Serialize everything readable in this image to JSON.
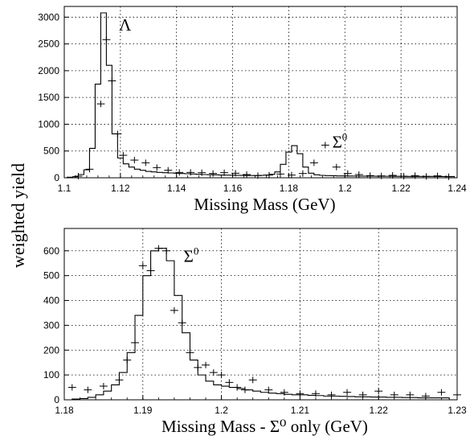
{
  "figure": {
    "shared_ylabel": "weighted yield"
  },
  "chart_data": [
    {
      "type": "histogram",
      "xlabel": "Missing Mass (GeV)",
      "xlim": [
        1.1,
        1.24
      ],
      "ylim": [
        0,
        3200
      ],
      "xticks": [
        "1.1",
        "1.12",
        "1.14",
        "1.16",
        "1.18",
        "1.2",
        "1.22",
        "1.24"
      ],
      "yticks": [
        "0",
        "500",
        "1000",
        "1500",
        "2000",
        "2500",
        "3000"
      ],
      "grid": true,
      "annotations": [
        {
          "text": "Λ",
          "x": 1.1195,
          "y": 2750
        },
        {
          "text": "Σ",
          "sup": "0",
          "x": 1.1955,
          "y": 560
        }
      ],
      "series": [
        {
          "style": "step",
          "bin_width": 0.002,
          "x": [
            1.102,
            1.104,
            1.106,
            1.108,
            1.11,
            1.112,
            1.114,
            1.116,
            1.118,
            1.12,
            1.122,
            1.124,
            1.126,
            1.128,
            1.13,
            1.132,
            1.134,
            1.136,
            1.138,
            1.14,
            1.142,
            1.144,
            1.146,
            1.148,
            1.15,
            1.152,
            1.154,
            1.156,
            1.158,
            1.16,
            1.162,
            1.164,
            1.166,
            1.168,
            1.17,
            1.172,
            1.174,
            1.176,
            1.178,
            1.18,
            1.182,
            1.184,
            1.186,
            1.188,
            1.19,
            1.192,
            1.194,
            1.196,
            1.198,
            1.2,
            1.202,
            1.204,
            1.206,
            1.208,
            1.21,
            1.212,
            1.214,
            1.216,
            1.218,
            1.22,
            1.222,
            1.224,
            1.226,
            1.228,
            1.23,
            1.232,
            1.234,
            1.236,
            1.238
          ],
          "y": [
            10,
            20,
            60,
            150,
            550,
            1750,
            3080,
            2100,
            820,
            370,
            260,
            200,
            160,
            140,
            120,
            110,
            100,
            95,
            90,
            85,
            80,
            75,
            70,
            65,
            60,
            58,
            55,
            52,
            50,
            48,
            46,
            44,
            42,
            42,
            45,
            50,
            65,
            110,
            250,
            480,
            600,
            450,
            200,
            85,
            55,
            45,
            40,
            38,
            35,
            34,
            33,
            32,
            31,
            30,
            30,
            29,
            28,
            28,
            27,
            27,
            26,
            26,
            25,
            25,
            25,
            25,
            24,
            24,
            24
          ]
        },
        {
          "style": "points",
          "x": [
            1.105,
            1.109,
            1.113,
            1.115,
            1.117,
            1.119,
            1.121,
            1.125,
            1.129,
            1.133,
            1.137,
            1.141,
            1.145,
            1.149,
            1.153,
            1.157,
            1.161,
            1.165,
            1.169,
            1.173,
            1.177,
            1.181,
            1.185,
            1.189,
            1.193,
            1.197,
            1.201,
            1.205,
            1.209,
            1.213,
            1.217,
            1.221,
            1.225,
            1.229,
            1.233,
            1.237
          ],
          "y": [
            30,
            160,
            1380,
            2580,
            1810,
            820,
            420,
            330,
            280,
            190,
            140,
            100,
            100,
            95,
            80,
            95,
            85,
            60,
            40,
            50,
            70,
            50,
            80,
            280,
            610,
            200,
            80,
            60,
            40,
            35,
            45,
            30,
            40,
            25,
            35,
            20
          ]
        }
      ]
    },
    {
      "type": "histogram",
      "xlabel": "Missing Mass - Σ⁰ only (GeV)",
      "xlim": [
        1.18,
        1.23
      ],
      "ylim": [
        0,
        690
      ],
      "xticks": [
        "1.18",
        "1.19",
        "1.2",
        "1.21",
        "1.22",
        "1.23"
      ],
      "yticks": [
        "0",
        "100",
        "200",
        "300",
        "400",
        "500",
        "600"
      ],
      "grid": true,
      "annotations": [
        {
          "text": "Σ",
          "sup": "0",
          "x": 1.1952,
          "y": 555
        }
      ],
      "series": [
        {
          "style": "step",
          "bin_width": 0.001,
          "x": [
            1.1805,
            1.1815,
            1.1825,
            1.1835,
            1.1845,
            1.1855,
            1.1865,
            1.1875,
            1.1885,
            1.1895,
            1.1905,
            1.1915,
            1.1925,
            1.1935,
            1.1945,
            1.1955,
            1.1965,
            1.1975,
            1.1985,
            1.1995,
            1.2005,
            1.2015,
            1.2025,
            1.2035,
            1.2045,
            1.2055,
            1.2065,
            1.2075,
            1.2085,
            1.2095,
            1.2105,
            1.2115,
            1.2125,
            1.2135,
            1.2145,
            1.2155,
            1.2165,
            1.2175,
            1.2185,
            1.2195,
            1.2205,
            1.2215,
            1.2225,
            1.2235,
            1.2245,
            1.2255,
            1.2265,
            1.2275,
            1.2285
          ],
          "y": [
            0,
            3,
            5,
            10,
            20,
            35,
            60,
            110,
            190,
            340,
            500,
            600,
            610,
            560,
            420,
            270,
            160,
            100,
            75,
            60,
            55,
            50,
            45,
            40,
            35,
            30,
            27,
            25,
            22,
            20,
            20,
            18,
            17,
            15,
            15,
            14,
            13,
            12,
            12,
            11,
            11,
            10,
            10,
            9,
            9,
            8,
            8,
            8,
            8
          ]
        },
        {
          "style": "points",
          "x": [
            1.181,
            1.183,
            1.185,
            1.187,
            1.188,
            1.189,
            1.19,
            1.191,
            1.192,
            1.193,
            1.194,
            1.195,
            1.196,
            1.197,
            1.198,
            1.199,
            1.2,
            1.201,
            1.202,
            1.203,
            1.204,
            1.206,
            1.208,
            1.21,
            1.212,
            1.214,
            1.216,
            1.218,
            1.22,
            1.222,
            1.224,
            1.226,
            1.228,
            1.23
          ],
          "y": [
            50,
            40,
            55,
            80,
            160,
            230,
            540,
            520,
            610,
            600,
            360,
            310,
            190,
            130,
            140,
            110,
            100,
            70,
            50,
            40,
            80,
            40,
            30,
            25,
            25,
            20,
            30,
            20,
            35,
            20,
            20,
            15,
            30,
            20
          ]
        }
      ]
    }
  ]
}
